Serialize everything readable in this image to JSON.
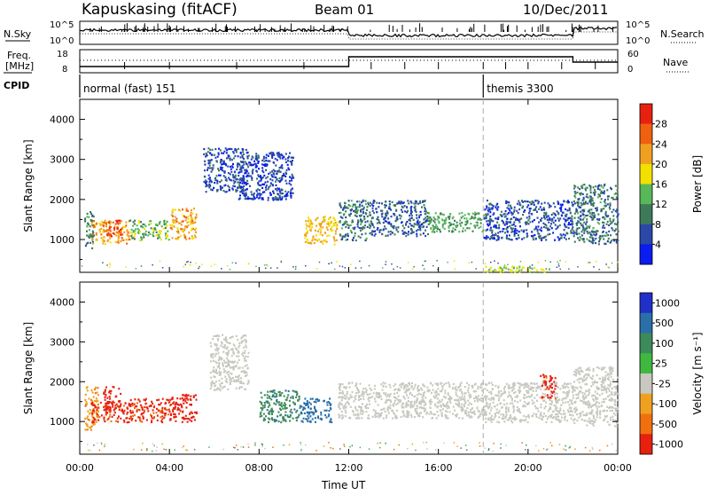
{
  "header": {
    "station": "Kapuskasing (fitACF)",
    "beam": "Beam 01",
    "date": "10/Dec/2011"
  },
  "noise_panel": {
    "left_label": "N.Sky",
    "right_label": "N.Search",
    "left_ticks": [
      "10^5",
      "10^0"
    ],
    "right_ticks": [
      "10^5",
      "10^0"
    ]
  },
  "freq_panel": {
    "left_label_line1": "Freq.",
    "left_label_line2": "[MHz]",
    "right_label": "Nave",
    "left_ticks": [
      "18",
      "8"
    ],
    "right_ticks": [
      "60",
      "0"
    ]
  },
  "cpid": {
    "label": "CPID",
    "segments": [
      {
        "start_hour": 0,
        "name": "normal (fast) 151"
      },
      {
        "start_hour": 18.0,
        "name": "themis 3300"
      }
    ]
  },
  "time_axis": {
    "label": "Time UT",
    "ticks": [
      "00:00",
      "04:00",
      "08:00",
      "12:00",
      "16:00",
      "20:00",
      "00:00"
    ],
    "tick_hours": [
      0,
      4,
      8,
      12,
      16,
      20,
      24
    ]
  },
  "chart_data": [
    {
      "type": "heatmap",
      "name": "power",
      "ylabel": "Slant Range [km]",
      "ylim": [
        180,
        4500
      ],
      "xlim": [
        0,
        24
      ],
      "y_ticks": [
        "1000",
        "2000",
        "3000",
        "4000"
      ],
      "y_tick_values": [
        1000,
        2000,
        3000,
        4000
      ],
      "colorbar": {
        "label": "Power [dB]",
        "tick_labels": [
          "4",
          "8",
          "12",
          "16",
          "20",
          "24",
          "28"
        ],
        "colors": [
          "#0a1cf0",
          "#2948a8",
          "#3c7a5a",
          "#57b857",
          "#f2e000",
          "#f0a020",
          "#f06010",
          "#e82010"
        ]
      },
      "regions": [
        {
          "t0": 0.2,
          "t1": 0.6,
          "r0": 800,
          "r1": 1800,
          "value": 10
        },
        {
          "t0": 0.5,
          "t1": 2.2,
          "r0": 900,
          "r1": 1500,
          "value": 22
        },
        {
          "t0": 1.0,
          "t1": 1.8,
          "r0": 1100,
          "r1": 1500,
          "value": 28
        },
        {
          "t0": 2.2,
          "t1": 4.0,
          "r0": 1000,
          "r1": 1500,
          "value": 14
        },
        {
          "t0": 4.0,
          "t1": 5.2,
          "r0": 1000,
          "r1": 1800,
          "value": 22
        },
        {
          "t0": 5.5,
          "t1": 7.5,
          "r0": 2200,
          "r1": 3300,
          "value": 6
        },
        {
          "t0": 7.0,
          "t1": 9.5,
          "r0": 2000,
          "r1": 3200,
          "value": 5
        },
        {
          "t0": 10.0,
          "t1": 11.5,
          "r0": 900,
          "r1": 1600,
          "value": 20
        },
        {
          "t0": 11.5,
          "t1": 13.0,
          "r0": 1000,
          "r1": 2000,
          "value": 9
        },
        {
          "t0": 13.0,
          "t1": 15.5,
          "r0": 1100,
          "r1": 2000,
          "value": 7
        },
        {
          "t0": 15.5,
          "t1": 18.0,
          "r0": 1200,
          "r1": 1700,
          "value": 12
        },
        {
          "t0": 18.0,
          "t1": 22.0,
          "r0": 1000,
          "r1": 2000,
          "value": 6
        },
        {
          "t0": 22.0,
          "t1": 24.0,
          "r0": 900,
          "r1": 2400,
          "value": 9
        },
        {
          "t0": 18.0,
          "t1": 21.0,
          "r0": 200,
          "r1": 350,
          "value": 16
        }
      ]
    },
    {
      "type": "heatmap",
      "name": "velocity",
      "ylabel": "Slant Range [km]",
      "ylim": [
        180,
        4500
      ],
      "xlim": [
        0,
        24
      ],
      "y_ticks": [
        "1000",
        "2000",
        "3000",
        "4000"
      ],
      "y_tick_values": [
        1000,
        2000,
        3000,
        4000
      ],
      "colorbar": {
        "label": "Velocity [m s⁻¹]",
        "tick_labels": [
          "1000",
          "500",
          "100",
          "25",
          "-25",
          "-100",
          "-500",
          "-1000"
        ],
        "colors": [
          "#2030c8",
          "#2a6fa8",
          "#3d8a5a",
          "#40b840",
          "#c8c8c0",
          "#f0a020",
          "#f07010",
          "#e82010"
        ]
      },
      "regions": [
        {
          "t0": 0.2,
          "t1": 0.8,
          "r0": 800,
          "r1": 1900,
          "value": -50
        },
        {
          "t0": 0.5,
          "t1": 2.2,
          "r0": 1000,
          "r1": 1500,
          "value": -300
        },
        {
          "t0": 1.0,
          "t1": 1.8,
          "r0": 1300,
          "r1": 1900,
          "value": -900
        },
        {
          "t0": 2.2,
          "t1": 4.0,
          "r0": 1000,
          "r1": 1600,
          "value": -300
        },
        {
          "t0": 4.0,
          "t1": 5.2,
          "r0": 1000,
          "r1": 1700,
          "value": -400
        },
        {
          "t0": 5.8,
          "t1": 7.5,
          "r0": 1800,
          "r1": 3200,
          "value": 0
        },
        {
          "t0": 8.0,
          "t1": 9.8,
          "r0": 1000,
          "r1": 1800,
          "value": 200
        },
        {
          "t0": 9.8,
          "t1": 11.2,
          "r0": 1000,
          "r1": 1600,
          "value": 400
        },
        {
          "t0": 11.5,
          "t1": 18.0,
          "r0": 1100,
          "r1": 2000,
          "value": 0
        },
        {
          "t0": 18.0,
          "t1": 22.0,
          "r0": 1000,
          "r1": 2000,
          "value": 0
        },
        {
          "t0": 22.0,
          "t1": 24.0,
          "r0": 900,
          "r1": 2400,
          "value": 0
        },
        {
          "t0": 20.5,
          "t1": 21.2,
          "r0": 1600,
          "r1": 2200,
          "value": -300
        }
      ]
    }
  ]
}
